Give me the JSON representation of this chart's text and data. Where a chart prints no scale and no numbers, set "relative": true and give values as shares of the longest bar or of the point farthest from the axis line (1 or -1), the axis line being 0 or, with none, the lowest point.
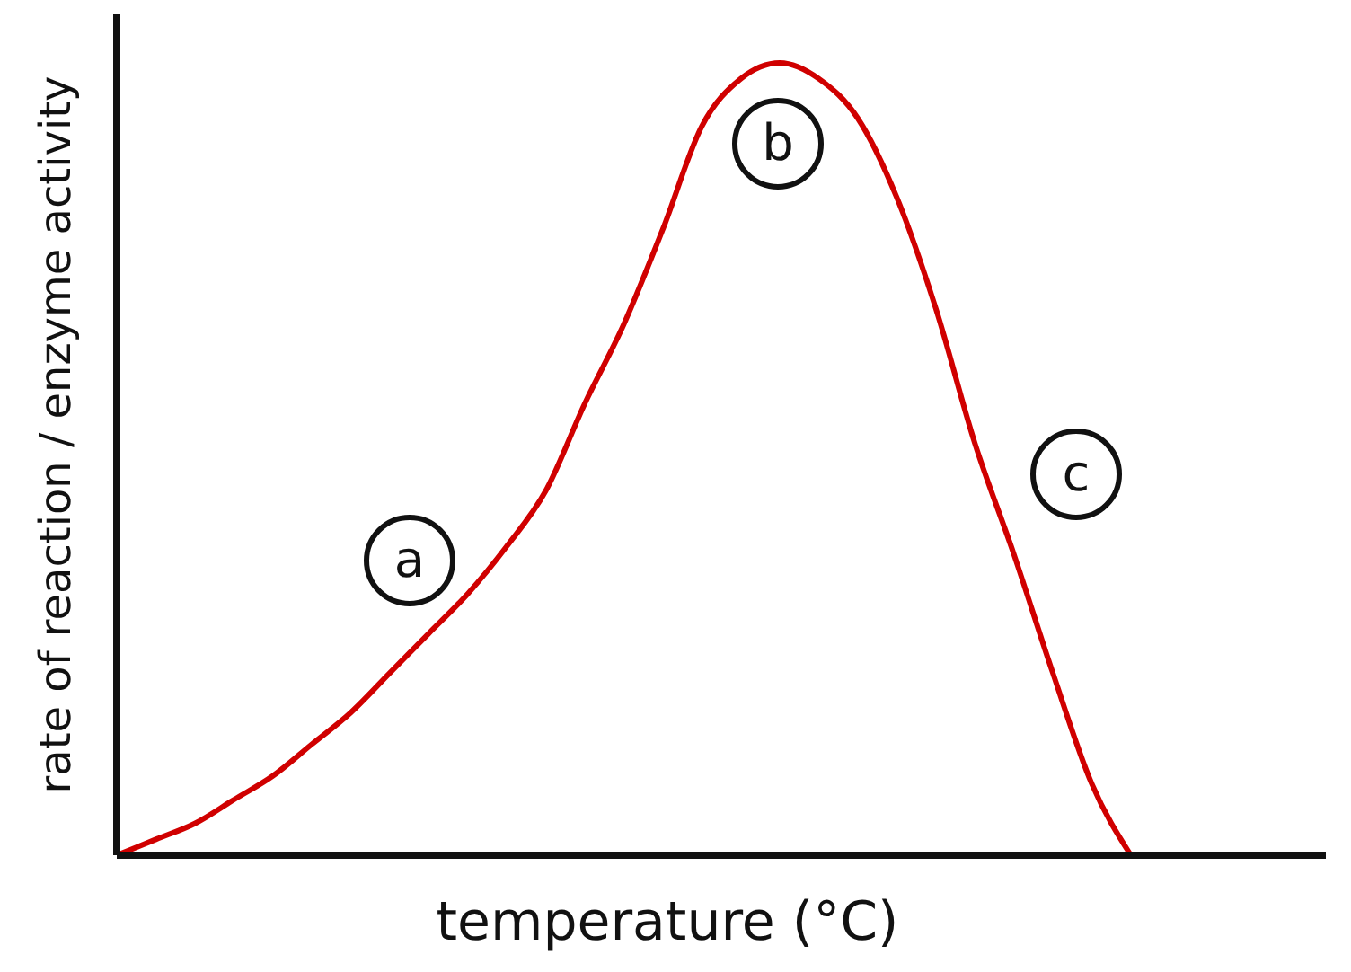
{
  "chart_data": {
    "type": "line",
    "relative": true,
    "xlabel": "temperature (°C)",
    "ylabel": "rate of reaction / enzyme activity",
    "categories": [
      null,
      null,
      null,
      null,
      null,
      null,
      null,
      null,
      null,
      null,
      null,
      null,
      null,
      null,
      null,
      null,
      null,
      null,
      null,
      null,
      null,
      null,
      null,
      null,
      null,
      null,
      null,
      null,
      null,
      null,
      null,
      null
    ],
    "values": [
      0,
      0.02,
      0.04,
      0.07,
      0.1,
      0.14,
      0.18,
      0.23,
      0.28,
      0.33,
      0.39,
      0.46,
      0.57,
      0.67,
      0.79,
      0.92,
      0.98,
      1,
      0.98,
      0.93,
      0.83,
      0.69,
      0.52,
      0.38,
      0.23,
      0.09,
      0,
      null,
      null,
      null,
      null,
      null
    ],
    "color": "#d00000",
    "annotations": [
      "a",
      "b",
      "c"
    ]
  }
}
